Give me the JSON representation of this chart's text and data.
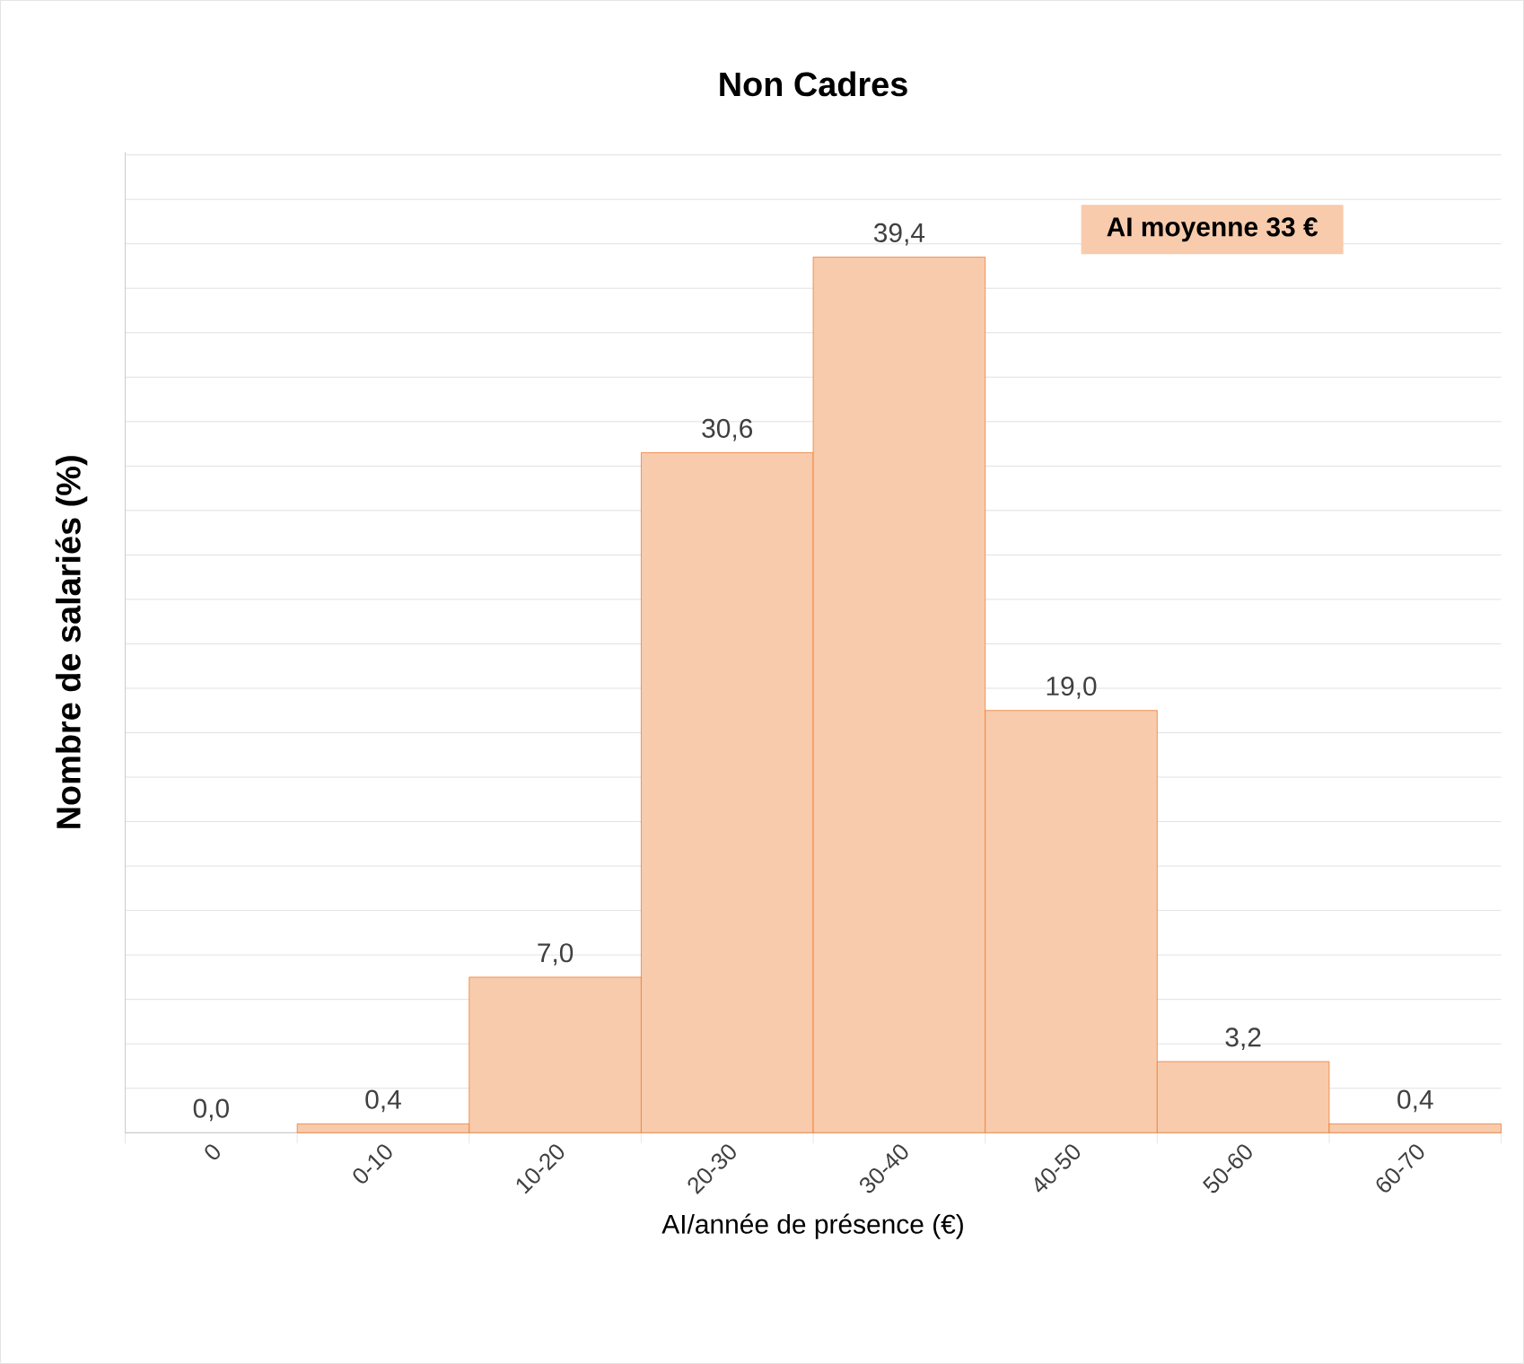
{
  "chart_data": {
    "type": "bar",
    "title": "Non Cadres",
    "xlabel": "AI/année de présence (€)",
    "ylabel": "Nombre de salariés (%)",
    "categories": [
      "0",
      "0-10",
      "10-20",
      "20-30",
      "30-40",
      "40-50",
      "50-60",
      "60-70"
    ],
    "values": [
      0.0,
      0.4,
      7.0,
      30.6,
      39.4,
      19.0,
      3.2,
      0.4
    ],
    "value_labels": [
      "0,0",
      "0,4",
      "7,0",
      "30,6",
      "39,4",
      "19,0",
      "3,2",
      "0,4"
    ],
    "color": "#f8cbad",
    "tick_labels": "x",
    "grid": "y",
    "annotations": [
      "AI moyenne 33 €"
    ]
  }
}
